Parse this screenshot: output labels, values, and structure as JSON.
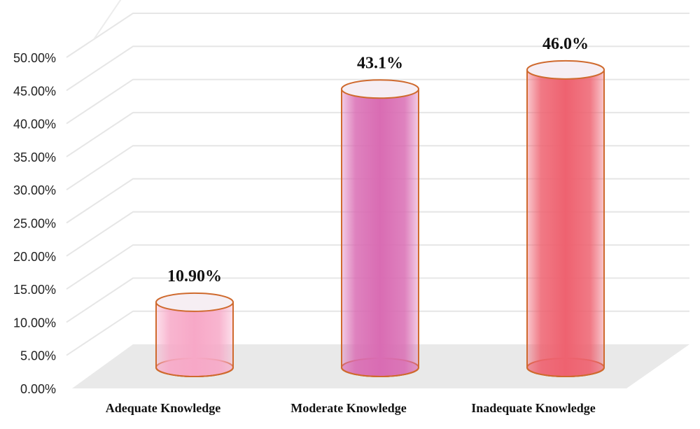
{
  "chart_data": {
    "type": "bar",
    "style": "3d-cylinder",
    "categories": [
      "Adequate Knowledge",
      "Moderate Knowledge",
      "Inadequate Knowledge"
    ],
    "values": [
      10.9,
      43.1,
      46.0
    ],
    "data_labels": [
      "10.90%",
      "43.1%",
      "46.0%"
    ],
    "colors": [
      "#f7a8c7",
      "#d96cb3",
      "#ee6270"
    ],
    "outline_color": "#cf6a2e",
    "ylim": [
      0,
      50
    ],
    "yticks": [
      "0.00%",
      "5.00%",
      "10.00%",
      "15.00%",
      "20.00%",
      "25.00%",
      "30.00%",
      "35.00%",
      "40.00%",
      "45.00%",
      "50.00%"
    ],
    "grid": true,
    "title": "",
    "xlabel": "",
    "ylabel": ""
  }
}
